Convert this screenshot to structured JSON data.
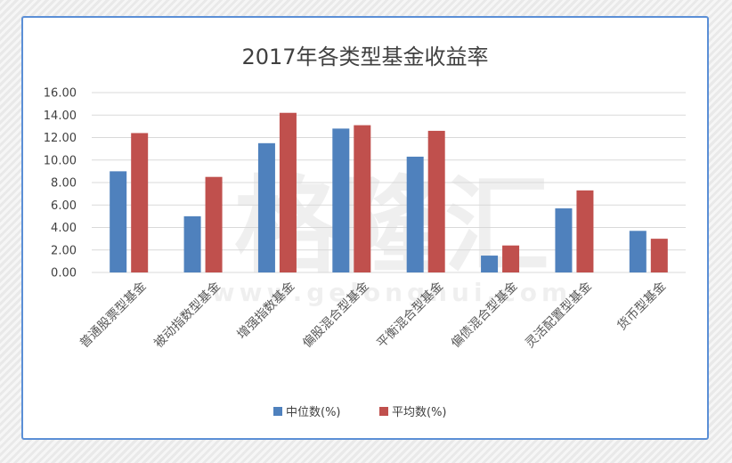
{
  "chart_data": {
    "type": "bar",
    "title": "2017年各类型基金收益率",
    "categories": [
      "普通股票型基金",
      "被动指数型基金",
      "增强指数基金",
      "偏股混合型基金",
      "平衡混合型基金",
      "偏债混合型基金",
      "灵活配置型基金",
      "货币型基金"
    ],
    "series": [
      {
        "name": "中位数(%)",
        "color": "#4f81bd",
        "values": [
          9.0,
          5.0,
          11.5,
          12.8,
          10.3,
          1.5,
          5.7,
          3.7
        ]
      },
      {
        "name": "平均数(%)",
        "color": "#c0504d",
        "values": [
          12.4,
          8.5,
          14.2,
          13.1,
          12.6,
          2.4,
          7.3,
          3.0
        ]
      }
    ],
    "ylim": [
      0,
      16
    ],
    "yticks": [
      "0.00",
      "2.00",
      "4.00",
      "6.00",
      "8.00",
      "10.00",
      "12.00",
      "14.00",
      "16.00"
    ],
    "grid": true,
    "legend_position": "bottom"
  },
  "watermark": {
    "logo": "格隆汇",
    "url": "www.gelonghui.com"
  }
}
